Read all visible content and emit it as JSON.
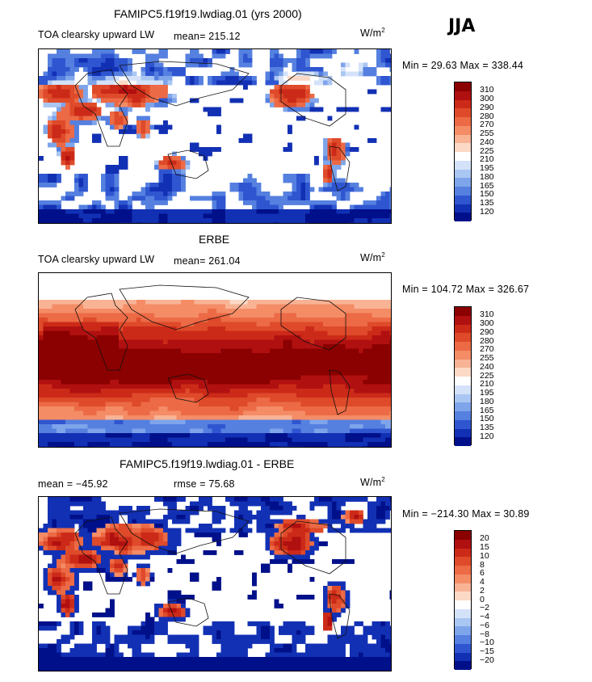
{
  "season": "JJA",
  "panels": [
    {
      "name": "model",
      "title": "FAMIPC5.f19f19.lwdiag.01 (yrs 2000)",
      "variable": "TOA clearsky upward LW",
      "mean_label": "mean= 215.12",
      "rmse_label": "",
      "units": "W/m",
      "units_exp": "2",
      "minmax": "Min =  29.63 Max = 338.44",
      "levels": [
        "310",
        "300",
        "290",
        "280",
        "270",
        "255",
        "240",
        "225",
        "210",
        "195",
        "180",
        "165",
        "150",
        "135",
        "120"
      ],
      "field": "model"
    },
    {
      "name": "obs",
      "title": "ERBE",
      "variable": "TOA clearsky upward LW",
      "mean_label": "mean= 261.04",
      "rmse_label": "",
      "units": "W/m",
      "units_exp": "2",
      "minmax": "Min = 104.72 Max = 326.67",
      "levels": [
        "310",
        "300",
        "290",
        "280",
        "270",
        "255",
        "240",
        "225",
        "210",
        "195",
        "180",
        "165",
        "150",
        "135",
        "120"
      ],
      "field": "obs"
    },
    {
      "name": "diff",
      "title": "FAMIPC5.f19f19.lwdiag.01 - ERBE",
      "variable": "",
      "mean_label": "mean = −45.92",
      "rmse_label": "rmse =   75.68",
      "units": "W/m",
      "units_exp": "2",
      "minmax": "Min = −214.30 Max =  30.89",
      "levels": [
        "20",
        "15",
        "10",
        "8",
        "6",
        "4",
        "2",
        "0",
        "−2",
        "−4",
        "−6",
        "−8",
        "−10",
        "−15",
        "−20"
      ],
      "field": "diff"
    }
  ],
  "palette": [
    "#8b0000",
    "#b01010",
    "#cc2a18",
    "#de4a2a",
    "#ec6a45",
    "#f48c66",
    "#f8b395",
    "#fbd9c6",
    "#ffffff",
    "#d4e2f9",
    "#aac6f2",
    "#7ea4ea",
    "#5580e0",
    "#2f56d0",
    "#1230b4",
    "#00108a"
  ],
  "chart_data": [
    {
      "type": "heatmap",
      "title": "FAMIPC5.f19f19.lwdiag.01 (yrs 2000)",
      "subtitle": "TOA clearsky upward LW",
      "mean": 215.12,
      "min": 29.63,
      "max": 338.44,
      "units": "W/m2",
      "contour_levels": [
        120,
        135,
        150,
        165,
        180,
        195,
        210,
        225,
        240,
        255,
        270,
        280,
        290,
        300,
        310
      ],
      "xlabel": "",
      "ylabel": "",
      "xlim": [
        0,
        360
      ],
      "ylim": [
        -90,
        90
      ]
    },
    {
      "type": "heatmap",
      "title": "ERBE",
      "subtitle": "TOA clearsky upward LW",
      "mean": 261.04,
      "min": 104.72,
      "max": 326.67,
      "units": "W/m2",
      "contour_levels": [
        120,
        135,
        150,
        165,
        180,
        195,
        210,
        225,
        240,
        255,
        270,
        280,
        290,
        300,
        310
      ],
      "xlabel": "",
      "ylabel": "",
      "xlim": [
        0,
        360
      ],
      "ylim": [
        -90,
        90
      ]
    },
    {
      "type": "heatmap",
      "title": "FAMIPC5.f19f19.lwdiag.01 - ERBE",
      "mean": -45.92,
      "rmse": 75.68,
      "min": -214.3,
      "max": 30.89,
      "units": "W/m2",
      "contour_levels": [
        -20,
        -15,
        -10,
        -8,
        -6,
        -4,
        -2,
        0,
        2,
        4,
        6,
        8,
        10,
        15,
        20
      ],
      "xlabel": "",
      "ylabel": "",
      "xlim": [
        0,
        360
      ],
      "ylim": [
        -90,
        90
      ]
    }
  ]
}
